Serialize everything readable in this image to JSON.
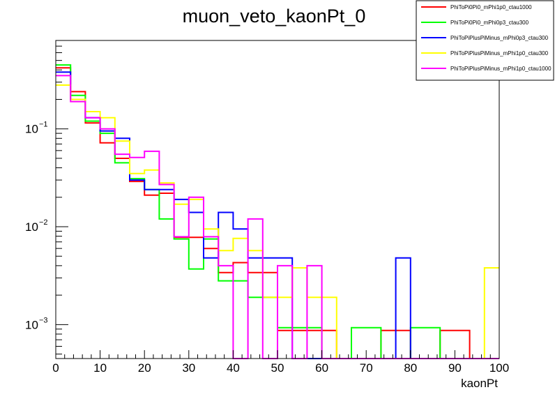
{
  "chart_data": {
    "type": "line",
    "title": "muon_veto_kaonPt_0",
    "xlabel": "kaonPt",
    "ylabel": "",
    "xlim": [
      0,
      100
    ],
    "ylim": [
      0.00045,
      0.8
    ],
    "yscale": "log",
    "grid": false,
    "legend_position": "top-right",
    "x_ticks": [
      "0",
      "10",
      "20",
      "30",
      "40",
      "50",
      "60",
      "70",
      "80",
      "90",
      "100"
    ],
    "y_ticks": [
      {
        "base": "10",
        "exp": "−3",
        "value": 0.001
      },
      {
        "base": "10",
        "exp": "−2",
        "value": 0.01
      },
      {
        "base": "10",
        "exp": "−1",
        "value": 0.1
      }
    ],
    "bin_edges": [
      0,
      3.33,
      6.67,
      10,
      13.33,
      16.67,
      20,
      23.33,
      26.67,
      30,
      33.33,
      36.67,
      40,
      43.33,
      46.67,
      50,
      53.33,
      56.67,
      60,
      63.33,
      66.67,
      70,
      73.33,
      76.67,
      80,
      83.33,
      86.67,
      90,
      93.33,
      96.67,
      100
    ],
    "series": [
      {
        "name": "PhiToPi0Pi0_mPhi1p0_ctau1000",
        "color": "#ff0000",
        "values": [
          0.42,
          0.24,
          0.115,
          0.072,
          0.05,
          0.029,
          0.021,
          0.022,
          0.0078,
          0.0078,
          0.006,
          0.0034,
          0.0043,
          0.0034,
          0.0034,
          0.00087,
          0.00087,
          0.00087,
          0.00087,
          0,
          0,
          0,
          0.00087,
          0.00087,
          0,
          0,
          0.00087,
          0.00087,
          0,
          0
        ]
      },
      {
        "name": "PhiToPi0Pi0_mPhi0p3_ctau300",
        "color": "#00ff00",
        "values": [
          0.45,
          0.22,
          0.12,
          0.09,
          0.045,
          0.031,
          0.024,
          0.012,
          0.0075,
          0.0037,
          0.0075,
          0.0028,
          0.0028,
          0.0019,
          0.0019,
          0.00093,
          0.00093,
          0.00093,
          0,
          0,
          0.00093,
          0.00093,
          0,
          0,
          0.00093,
          0.00093,
          0,
          0,
          0,
          0
        ]
      },
      {
        "name": "PhiToPiPlusPiMinus_mPhi0p3_ctau300",
        "color": "#0000ff",
        "values": [
          0.38,
          0.2,
          0.13,
          0.095,
          0.08,
          0.03,
          0.024,
          0.024,
          0.019,
          0.014,
          0.0048,
          0.014,
          0.0095,
          0.0048,
          0.0048,
          0.0048,
          0,
          0,
          0,
          0,
          0,
          0,
          0,
          0.0048,
          0,
          0,
          0,
          0,
          0,
          0
        ]
      },
      {
        "name": "PhiToPiPlusPiMinus_mPhi1p0_ctau300",
        "color": "#ffff00",
        "values": [
          0.28,
          0.2,
          0.15,
          0.13,
          0.075,
          0.035,
          0.038,
          0.028,
          0.017,
          0.019,
          0.0095,
          0.0057,
          0.0076,
          0.0057,
          0.0019,
          0.0019,
          0.0038,
          0.0019,
          0.0019,
          0,
          0,
          0,
          0,
          0,
          0,
          0,
          0,
          0,
          0,
          0.0038
        ]
      },
      {
        "name": "PhiToPiPlusPiMinus_mPhi1p0_ctau1000",
        "color": "#ff00ff",
        "values": [
          0.35,
          0.19,
          0.13,
          0.1,
          0.055,
          0.051,
          0.059,
          0.027,
          0.0079,
          0.02,
          0.0079,
          0.004,
          0,
          0.012,
          0,
          0.004,
          0,
          0.004,
          0,
          0,
          0,
          0,
          0,
          0,
          0,
          0,
          0,
          0,
          0,
          0
        ]
      }
    ]
  }
}
